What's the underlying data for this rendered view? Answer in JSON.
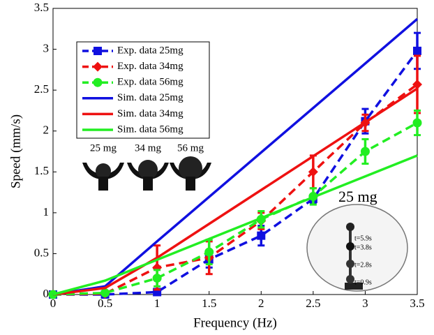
{
  "chart_data": {
    "type": "line",
    "x_label": "Frequency (Hz)",
    "y_label": "Speed (mm/s)",
    "xlim": [
      0,
      3.5
    ],
    "ylim": [
      0,
      3.5
    ],
    "xticks": [
      0,
      0.5,
      1,
      1.5,
      2,
      2.5,
      3,
      3.5
    ],
    "yticks": [
      0,
      0.5,
      1,
      1.5,
      2,
      2.5,
      3,
      3.5
    ],
    "legend": "upper left",
    "series": [
      {
        "name": "Exp. data 25mg",
        "color": "#1010e0",
        "linestyle": "dashed",
        "marker": "square",
        "x": [
          0,
          0.5,
          1,
          1.5,
          2,
          2.5,
          3,
          3.5
        ],
        "values": [
          0,
          0,
          0.03,
          0.43,
          0.72,
          1.17,
          2.12,
          2.98
        ],
        "errors": [
          0,
          0,
          0.03,
          0.1,
          0.12,
          0.05,
          0.15,
          0.22
        ]
      },
      {
        "name": "Exp. data 34mg",
        "color": "#ee1111",
        "linestyle": "dashed",
        "marker": "diamond",
        "x": [
          0,
          0.5,
          1,
          1.5,
          2,
          2.5,
          3,
          3.5
        ],
        "values": [
          0,
          0.01,
          0.33,
          0.45,
          0.9,
          1.5,
          2.1,
          2.57
        ],
        "errors": [
          0,
          0,
          0.27,
          0.2,
          0.1,
          0.2,
          0.1,
          0.35
        ]
      },
      {
        "name": "Exp. data 56mg",
        "color": "#22ee22",
        "linestyle": "dashed",
        "marker": "circle",
        "x": [
          0,
          0.5,
          1,
          1.5,
          2,
          2.5,
          3,
          3.5
        ],
        "values": [
          0,
          0.02,
          0.2,
          0.52,
          0.92,
          1.2,
          1.75,
          2.1
        ],
        "errors": [
          0,
          0,
          0.1,
          0.15,
          0.1,
          0.1,
          0.15,
          0.15
        ]
      },
      {
        "name": "Sim. data 25mg",
        "color": "#1010e0",
        "linestyle": "solid",
        "marker": "none",
        "x": [
          0,
          0.5,
          1,
          3.5
        ],
        "values": [
          0,
          0.1,
          0.65,
          3.37
        ]
      },
      {
        "name": "Sim. data 34mg",
        "color": "#ee1111",
        "linestyle": "solid",
        "marker": "none",
        "x": [
          0,
          0.5,
          1,
          3.5
        ],
        "values": [
          0,
          0.08,
          0.45,
          2.52
        ]
      },
      {
        "name": "Sim. data 56mg",
        "color": "#22ee22",
        "linestyle": "solid",
        "marker": "none",
        "x": [
          0,
          0.5,
          3.5
        ],
        "values": [
          0,
          0.17,
          1.7
        ]
      }
    ],
    "insets": {
      "mass_labels": [
        "25 mg",
        "34 mg",
        "56 mg"
      ],
      "photo_title": "25 mg",
      "time_labels": [
        "t=5.9s",
        "t=3.8s",
        "t=2.8s",
        "t=0.9s"
      ]
    }
  }
}
